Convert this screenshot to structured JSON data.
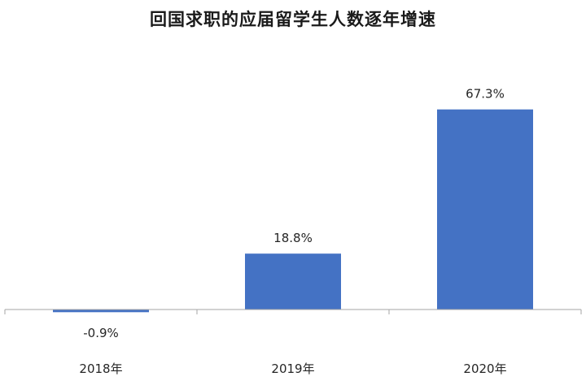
{
  "chart_data": {
    "type": "bar",
    "title": "回国求职的应届留学生人数逐年增速",
    "categories": [
      "2018年",
      "2019年",
      "2020年"
    ],
    "values": [
      -0.9,
      18.8,
      67.3
    ],
    "data_labels": [
      "-0.9%",
      "18.8%",
      "67.3%"
    ],
    "xlabel": "",
    "ylabel": "",
    "ylim": [
      -5,
      70
    ],
    "grid": false,
    "legend": "none",
    "bar_color": "#4472C4",
    "axis_color": "#A6A6A6",
    "text_color": "#262626"
  }
}
